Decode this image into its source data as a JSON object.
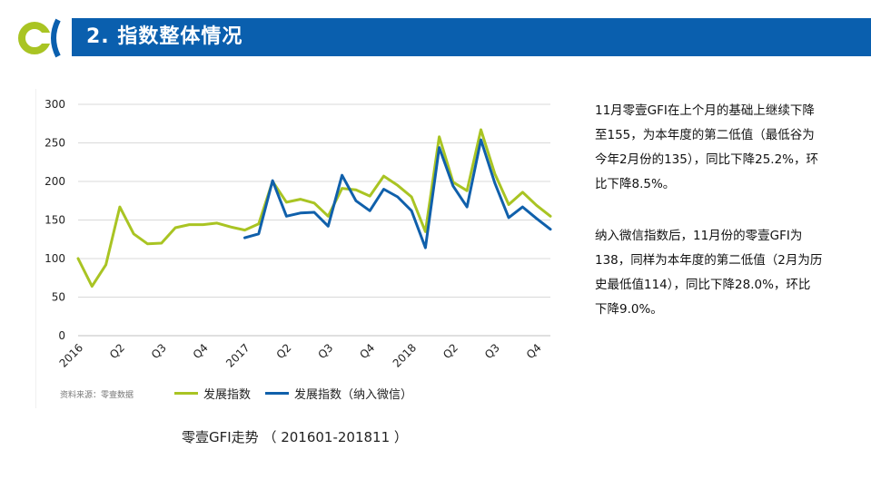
{
  "header": {
    "title": "2. 指数整体情况"
  },
  "source_note": "资料来源：零壹数据",
  "caption": "零壹GFI走势 （ 201601-201811 ）",
  "description": {
    "paragraph1": [
      "11月零壹GFI在上个月的基础上继续下降",
      "至155，为本年度的第二低值（最低谷为",
      "今年2月份的135），同比下降25.2%，环",
      "比下降8.5%。"
    ],
    "paragraph2": [
      "纳入微信指数后，11月份的零壹GFI为",
      "138，同样为本年度的第二低值（2月为历",
      "史最低值114），同比下降28.0%，环比",
      "下降9.0%。"
    ]
  },
  "colors": {
    "header": "#0a5fae",
    "series1": "#a9c423",
    "series2": "#1060ab",
    "logo_ring": "#a9c423",
    "logo_bracket": "#0a5fae"
  },
  "chart_data": {
    "type": "line",
    "x": [
      1,
      2,
      3,
      4,
      5,
      6,
      7,
      8,
      9,
      10,
      11,
      12,
      13,
      14,
      15,
      16,
      17,
      18,
      19,
      20,
      21,
      22,
      23,
      24,
      25,
      26,
      27,
      28,
      29,
      30,
      31,
      32,
      33,
      34,
      35
    ],
    "x_tick_labels": [
      {
        "at": 1,
        "label": "2016"
      },
      {
        "at": 4,
        "label": "Q2"
      },
      {
        "at": 7,
        "label": "Q3"
      },
      {
        "at": 10,
        "label": "Q4"
      },
      {
        "at": 13,
        "label": "2017"
      },
      {
        "at": 16,
        "label": "Q2"
      },
      {
        "at": 19,
        "label": "Q3"
      },
      {
        "at": 22,
        "label": "Q4"
      },
      {
        "at": 25,
        "label": "2018"
      },
      {
        "at": 28,
        "label": "Q2"
      },
      {
        "at": 31,
        "label": "Q3"
      },
      {
        "at": 34,
        "label": "Q4"
      }
    ],
    "y_ticks": [
      0,
      50,
      100,
      150,
      200,
      250,
      300
    ],
    "ylim": [
      0,
      300
    ],
    "grid": "horizontal",
    "legend_position": "bottom",
    "series": [
      {
        "name": "发展指数",
        "values": [
          100,
          64,
          92,
          167,
          132,
          119,
          120,
          140,
          144,
          144,
          146,
          141,
          137,
          145,
          200,
          173,
          177,
          172,
          155,
          191,
          189,
          181,
          207,
          195,
          180,
          135,
          258,
          199,
          188,
          267,
          210,
          170,
          186,
          169,
          155
        ]
      },
      {
        "name": "发展指数（纳入微信）",
        "values": [
          null,
          null,
          null,
          null,
          null,
          null,
          null,
          null,
          null,
          null,
          null,
          null,
          127,
          132,
          201,
          155,
          159,
          160,
          142,
          208,
          175,
          162,
          190,
          180,
          162,
          114,
          244,
          194,
          167,
          254,
          198,
          153,
          167,
          152,
          138
        ]
      }
    ]
  }
}
